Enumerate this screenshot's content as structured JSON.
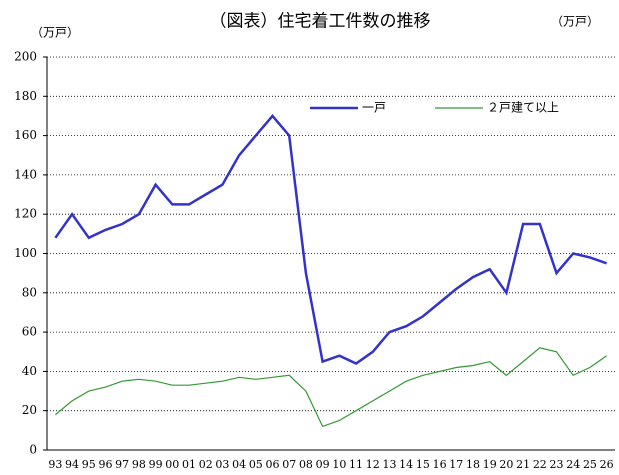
{
  "chart_data": {
    "type": "line",
    "title": "（図表）住宅着工件数の推移",
    "y_label": "（万戸）",
    "y_label_right": "（万戸）",
    "categories": [
      "93",
      "94",
      "95",
      "96",
      "97",
      "98",
      "99",
      "00",
      "01",
      "02",
      "03",
      "04",
      "05",
      "06",
      "07",
      "08",
      "09",
      "10",
      "11",
      "12",
      "13",
      "14",
      "15",
      "16",
      "17",
      "18",
      "19",
      "20",
      "21",
      "22",
      "23",
      "24",
      "25",
      "26"
    ],
    "series": [
      {
        "name": "一戸",
        "color": "#3333cc",
        "values": [
          108,
          120,
          108,
          112,
          115,
          120,
          135,
          125,
          125,
          130,
          135,
          150,
          160,
          170,
          160,
          90,
          45,
          48,
          44,
          50,
          60,
          63,
          68,
          75,
          82,
          88,
          92,
          80,
          115,
          115,
          90,
          100,
          98,
          95
        ]
      },
      {
        "name": "２戸建て以上",
        "color": "#339933",
        "values": [
          18,
          25,
          30,
          32,
          35,
          36,
          35,
          33,
          33,
          34,
          35,
          37,
          36,
          37,
          38,
          30,
          12,
          15,
          20,
          25,
          30,
          35,
          38,
          40,
          42,
          43,
          45,
          38,
          45,
          52,
          50,
          38,
          42,
          48
        ]
      }
    ],
    "ylim": [
      0,
      200
    ],
    "yticks": [
      0,
      20,
      40,
      60,
      80,
      100,
      120,
      140,
      160,
      180,
      200
    ],
    "grid": true
  }
}
